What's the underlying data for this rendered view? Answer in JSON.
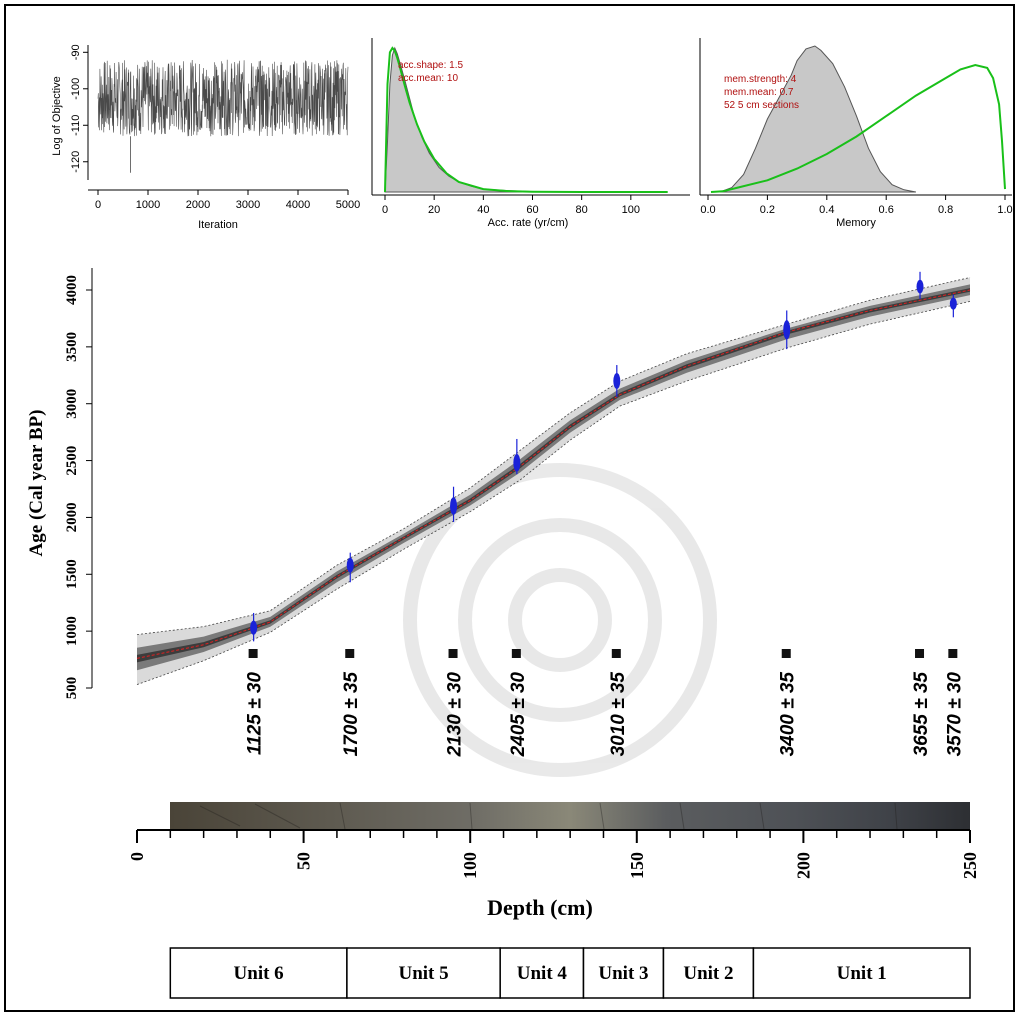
{
  "chart_data": {
    "trace": {
      "type": "line",
      "xlabel": "Iteration",
      "ylabel": "Log of Objective",
      "xlim": [
        0,
        5000
      ],
      "ylim": [
        -125,
        -88
      ],
      "x_ticks": [
        "0",
        "1000",
        "2000",
        "3000",
        "4000",
        "5000"
      ],
      "y_ticks": [
        "-90",
        "-100",
        "-110",
        "-120"
      ],
      "y_tick_values": [
        -90,
        -100,
        -110,
        -120
      ],
      "band_low": -113,
      "band_high": -92,
      "outlier": {
        "x": 650,
        "y": -123
      }
    },
    "acc_rate": {
      "type": "area",
      "xlabel": "Acc. rate (yr/cm)",
      "xlim": [
        0,
        120
      ],
      "x_ticks": [
        "0",
        "20",
        "40",
        "60",
        "80",
        "100"
      ],
      "annotations": [
        "acc.shape: 1.5",
        "acc.mean: 10"
      ],
      "posterior": {
        "x": [
          0,
          1,
          2,
          3,
          4,
          5,
          6,
          8,
          10,
          12,
          15,
          18,
          22,
          26,
          30,
          35,
          40,
          50,
          60,
          70
        ],
        "density": [
          0,
          0.35,
          0.75,
          0.95,
          1.0,
          0.96,
          0.9,
          0.78,
          0.65,
          0.52,
          0.38,
          0.27,
          0.17,
          0.11,
          0.07,
          0.04,
          0.02,
          0.01,
          0.003,
          0
        ]
      },
      "prior": {
        "x": [
          0,
          1,
          2,
          3,
          4,
          5,
          6,
          8,
          10,
          13,
          16,
          20,
          25,
          30,
          40,
          50,
          60,
          80,
          100,
          115
        ],
        "density": [
          0,
          0.75,
          0.97,
          1.0,
          0.98,
          0.93,
          0.87,
          0.74,
          0.62,
          0.47,
          0.35,
          0.23,
          0.13,
          0.07,
          0.02,
          0.006,
          0.002,
          0.0003,
          0.0001,
          0
        ]
      }
    },
    "memory": {
      "type": "area",
      "xlabel": "Memory",
      "xlim": [
        0,
        1
      ],
      "x_ticks": [
        "0.0",
        "0.2",
        "0.4",
        "0.6",
        "0.8",
        "1.0"
      ],
      "annotations": [
        "mem.strength: 4",
        "mem.mean: 0.7",
        "52 5 cm sections"
      ],
      "posterior": {
        "x": [
          0.04,
          0.08,
          0.12,
          0.16,
          0.2,
          0.24,
          0.28,
          0.3,
          0.33,
          0.36,
          0.38,
          0.42,
          0.46,
          0.5,
          0.54,
          0.58,
          0.62,
          0.66,
          0.7
        ],
        "density": [
          0,
          0.03,
          0.12,
          0.3,
          0.5,
          0.65,
          0.8,
          0.9,
          0.98,
          1.0,
          0.97,
          0.88,
          0.72,
          0.52,
          0.3,
          0.14,
          0.05,
          0.015,
          0
        ]
      },
      "prior": {
        "x": [
          0.01,
          0.05,
          0.1,
          0.2,
          0.3,
          0.4,
          0.5,
          0.6,
          0.7,
          0.8,
          0.85,
          0.9,
          0.94,
          0.96,
          0.98,
          0.99,
          1.0
        ],
        "density": [
          0.0,
          0.005,
          0.03,
          0.08,
          0.16,
          0.26,
          0.38,
          0.52,
          0.66,
          0.78,
          0.84,
          0.87,
          0.85,
          0.78,
          0.6,
          0.35,
          0.02
        ]
      }
    },
    "age_depth": {
      "type": "line",
      "xlabel": "Depth (cm)",
      "ylabel": "Age (Cal year BP)",
      "xlim": [
        0,
        250
      ],
      "ylim": [
        500,
        4100
      ],
      "x_ticks": [
        "0",
        "50",
        "100",
        "150",
        "200",
        "250"
      ],
      "y_ticks": [
        "500",
        "1000",
        "1500",
        "2000",
        "2500",
        "3000",
        "3500",
        "4000"
      ],
      "mean_curve": {
        "depth": [
          0,
          20,
          40,
          60,
          80,
          100,
          115,
          130,
          145,
          165,
          195,
          220,
          250
        ],
        "age": [
          760,
          880,
          1080,
          1480,
          1820,
          2150,
          2450,
          2800,
          3080,
          3330,
          3630,
          3820,
          4000
        ]
      },
      "lower_bound": {
        "depth": [
          0,
          20,
          40,
          60,
          80,
          100,
          115,
          130,
          145,
          165,
          195,
          220,
          250
        ],
        "age": [
          530,
          740,
          990,
          1370,
          1720,
          2050,
          2330,
          2680,
          2980,
          3200,
          3490,
          3700,
          3900
        ]
      },
      "upper_bound": {
        "depth": [
          0,
          20,
          40,
          60,
          80,
          100,
          115,
          130,
          145,
          165,
          195,
          220,
          250
        ],
        "age": [
          970,
          1040,
          1180,
          1580,
          1900,
          2260,
          2590,
          2920,
          3200,
          3440,
          3700,
          3910,
          4110
        ]
      },
      "dates": [
        {
          "depth": 35,
          "age": 1030,
          "min": 910,
          "max": 1160,
          "label": "1125 ± 30"
        },
        {
          "depth": 64,
          "age": 1580,
          "min": 1430,
          "max": 1690,
          "label": "1700 ± 35"
        },
        {
          "depth": 95,
          "age": 2100,
          "min": 1960,
          "max": 2270,
          "label": "2130 ± 30"
        },
        {
          "depth": 114,
          "age": 2480,
          "min": 2380,
          "max": 2690,
          "label": "2405 ± 30"
        },
        {
          "depth": 144,
          "age": 3200,
          "min": 3060,
          "max": 3340,
          "label": "3010 ± 35"
        },
        {
          "depth": 195,
          "age": 3650,
          "min": 3480,
          "max": 3820,
          "label": "3400 ± 35"
        },
        {
          "depth": 235,
          "age": 4030,
          "min": 3920,
          "max": 4160,
          "label": "3655 ± 35"
        },
        {
          "depth": 245,
          "age": 3880,
          "min": 3760,
          "max": 3960,
          "label": "3570 ± 30"
        }
      ]
    },
    "units": {
      "type": "table",
      "xlim": [
        0,
        250
      ],
      "rows": [
        {
          "label": "Unit 6",
          "from": 10,
          "to": 63
        },
        {
          "label": "Unit 5",
          "from": 63,
          "to": 109
        },
        {
          "label": "Unit 4",
          "from": 109,
          "to": 134
        },
        {
          "label": "Unit 3",
          "from": 134,
          "to": 158
        },
        {
          "label": "Unit 2",
          "from": 158,
          "to": 185
        },
        {
          "label": "Unit 1",
          "from": 185,
          "to": 250
        }
      ]
    }
  }
}
